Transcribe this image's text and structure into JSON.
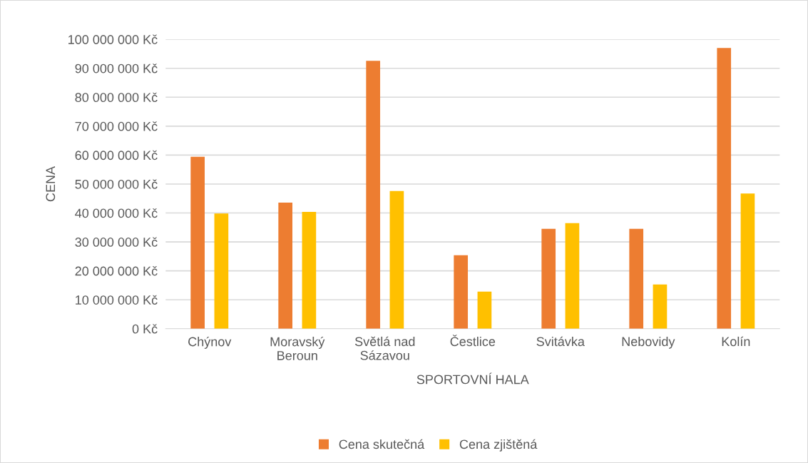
{
  "chart_data": {
    "type": "bar",
    "xlabel": "SPORTOVNÍ HALA",
    "ylabel": "CENA",
    "categories": [
      "Chýnov",
      "Moravský\nBeroun",
      "Světlá nad\nSázavou",
      "Čestlice",
      "Svitávka",
      "Nebovidy",
      "Kolín"
    ],
    "series": [
      {
        "name": "Cena skutečná",
        "color": "#ed7d31",
        "values": [
          59400000,
          43600000,
          92600000,
          25400000,
          34500000,
          34500000,
          97000000
        ]
      },
      {
        "name": "Cena zjištěná",
        "color": "#ffc000",
        "values": [
          39800000,
          40400000,
          47600000,
          12800000,
          36500000,
          15300000,
          46700000
        ]
      }
    ],
    "ylim": [
      0,
      100000000
    ],
    "yticks": [
      {
        "value": 0,
        "label": "0 Kč"
      },
      {
        "value": 10000000,
        "label": "10 000 000 Kč"
      },
      {
        "value": 20000000,
        "label": "20 000 000 Kč"
      },
      {
        "value": 30000000,
        "label": "30 000 000 Kč"
      },
      {
        "value": 40000000,
        "label": "40 000 000 Kč"
      },
      {
        "value": 50000000,
        "label": "50 000 000 Kč"
      },
      {
        "value": 60000000,
        "label": "60 000 000 Kč"
      },
      {
        "value": 70000000,
        "label": "70 000 000 Kč"
      },
      {
        "value": 80000000,
        "label": "80 000 000 Kč"
      },
      {
        "value": 90000000,
        "label": "90 000 000 Kč"
      },
      {
        "value": 100000000,
        "label": "100 000 000 Kč"
      }
    ],
    "grid": "y",
    "legend": "bottom"
  }
}
